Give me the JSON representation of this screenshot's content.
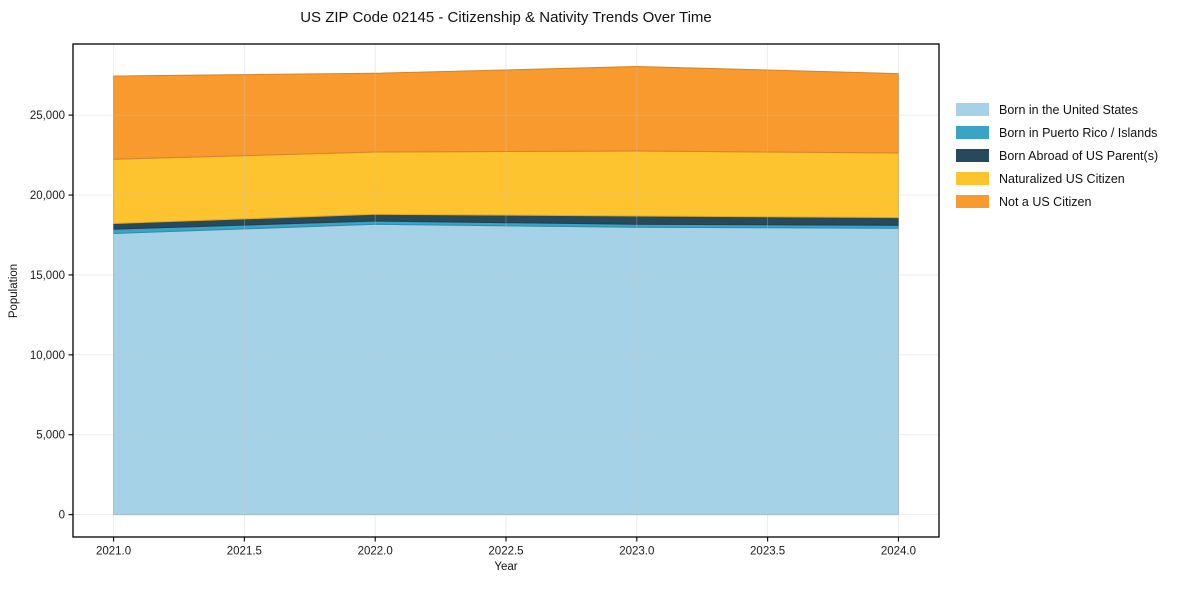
{
  "title": "US ZIP Code 02145 - Citizenship & Nativity Trends Over Time",
  "chart_data": {
    "type": "area",
    "stacked": true,
    "title": "US ZIP Code 02145 - Citizenship & Nativity Trends Over Time",
    "xlabel": "Year",
    "ylabel": "Population",
    "x": [
      2021,
      2022,
      2023,
      2024
    ],
    "series": [
      {
        "name": "Born in the United States",
        "color": "#A6D2E8",
        "values": [
          17590,
          18165,
          17980,
          17920
        ]
      },
      {
        "name": "Born in Puerto Rico / Islands",
        "color": "#3BA3C4",
        "values": [
          270,
          210,
          190,
          185
        ]
      },
      {
        "name": "Born Abroad of US Parent(s)",
        "color": "#26495C",
        "values": [
          355,
          420,
          515,
          480
        ]
      },
      {
        "name": "Naturalized US Citizen",
        "color": "#FDC42F",
        "values": [
          4020,
          3895,
          4070,
          4045
        ]
      },
      {
        "name": "Not a US Citizen",
        "color": "#F89A2E",
        "values": [
          5215,
          4925,
          5290,
          4970
        ]
      }
    ],
    "totals": [
      27450,
      27615,
      28045,
      27600
    ],
    "xlim": [
      2020.845,
      2024.155
    ],
    "ylim": [
      -1400,
      29450
    ],
    "x_ticks": [
      "2021.0",
      "2021.5",
      "2022.0",
      "2022.5",
      "2023.0",
      "2023.5",
      "2024.0"
    ],
    "x_tick_values": [
      2021.0,
      2021.5,
      2022.0,
      2022.5,
      2023.0,
      2023.5,
      2024.0
    ],
    "y_ticks": [
      "0",
      "5,000",
      "10,000",
      "15,000",
      "20,000",
      "25,000"
    ],
    "y_tick_values": [
      0,
      5000,
      10000,
      15000,
      20000,
      25000
    ],
    "grid": true,
    "grid_color": "#c8c8c8",
    "spine_color": "#000000",
    "legend_position": "right"
  }
}
